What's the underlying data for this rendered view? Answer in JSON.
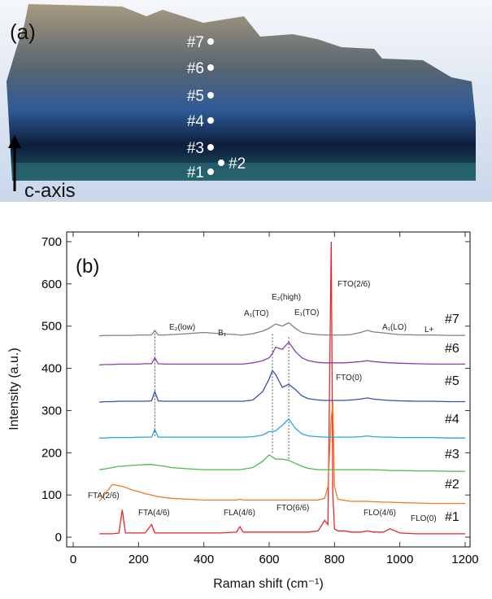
{
  "photo": {
    "panel_label": "(a)",
    "axis_label": "c-axis",
    "points": [
      "#7",
      "#6",
      "#5",
      "#4",
      "#3",
      "#1",
      "#2"
    ]
  },
  "chart_data": {
    "type": "line",
    "panel_label": "(b)",
    "xlabel": "Raman shift (cm⁻¹)",
    "ylabel": "Intensity (a.u.)",
    "x": [
      80,
      100,
      120,
      140,
      150,
      160,
      180,
      200,
      220,
      240,
      250,
      260,
      280,
      300,
      350,
      400,
      450,
      500,
      510,
      520,
      550,
      580,
      600,
      610,
      620,
      640,
      660,
      680,
      700,
      720,
      750,
      770,
      780,
      790,
      795,
      800,
      810,
      830,
      850,
      880,
      900,
      920,
      950,
      970,
      1000,
      1050,
      1100,
      1150,
      1200
    ],
    "series": [
      {
        "name": "#1",
        "color": "#e8262b",
        "values": [
          8,
          8,
          8,
          10,
          65,
          10,
          10,
          10,
          10,
          30,
          10,
          10,
          10,
          10,
          10,
          10,
          10,
          12,
          25,
          12,
          12,
          12,
          12,
          12,
          12,
          12,
          12,
          12,
          12,
          12,
          15,
          40,
          30,
          700,
          100,
          20,
          15,
          15,
          12,
          12,
          15,
          12,
          12,
          20,
          10,
          8,
          8,
          8,
          8
        ]
      },
      {
        "name": "#2",
        "color": "#f07a2a",
        "values": [
          85,
          105,
          125,
          122,
          120,
          118,
          112,
          108,
          103,
          100,
          98,
          96,
          94,
          92,
          90,
          88,
          88,
          88,
          90,
          88,
          88,
          88,
          88,
          88,
          88,
          88,
          88,
          88,
          88,
          88,
          88,
          92,
          120,
          280,
          320,
          120,
          90,
          87,
          85,
          85,
          85,
          84,
          83,
          83,
          82,
          81,
          80,
          80,
          80
        ]
      },
      {
        "name": "#3",
        "color": "#4db848",
        "values": [
          160,
          162,
          165,
          168,
          168,
          169,
          170,
          171,
          172,
          172,
          171,
          170,
          168,
          165,
          162,
          160,
          160,
          160,
          160,
          161,
          165,
          180,
          195,
          190,
          185,
          185,
          182,
          175,
          168,
          163,
          160,
          160,
          160,
          160,
          160,
          160,
          160,
          160,
          160,
          160,
          160,
          160,
          159,
          158,
          158,
          157,
          157,
          156,
          156
        ]
      },
      {
        "name": "#4",
        "color": "#29a3e0",
        "values": [
          235,
          235,
          236,
          236,
          236,
          236,
          236,
          237,
          237,
          237,
          255,
          237,
          237,
          237,
          237,
          237,
          237,
          237,
          237,
          237,
          238,
          242,
          250,
          250,
          252,
          265,
          280,
          258,
          245,
          240,
          238,
          237,
          237,
          237,
          237,
          237,
          237,
          237,
          237,
          238,
          240,
          238,
          237,
          237,
          236,
          236,
          236,
          235,
          235
        ]
      },
      {
        "name": "#5",
        "color": "#3452a8",
        "values": [
          320,
          321,
          321,
          322,
          322,
          322,
          322,
          322,
          322,
          323,
          345,
          323,
          322,
          322,
          322,
          322,
          322,
          322,
          322,
          322,
          325,
          345,
          375,
          395,
          385,
          355,
          362,
          350,
          335,
          328,
          325,
          324,
          324,
          324,
          324,
          324,
          324,
          324,
          325,
          327,
          330,
          327,
          325,
          324,
          323,
          322,
          322,
          321,
          321
        ]
      },
      {
        "name": "#6",
        "color": "#8c3fa5",
        "values": [
          408,
          409,
          409,
          410,
          410,
          410,
          410,
          410,
          411,
          411,
          425,
          411,
          410,
          410,
          410,
          410,
          410,
          410,
          410,
          410,
          413,
          418,
          425,
          435,
          450,
          445,
          462,
          440,
          425,
          418,
          414,
          413,
          413,
          413,
          413,
          413,
          413,
          413,
          414,
          416,
          418,
          416,
          414,
          413,
          412,
          411,
          410,
          410,
          410
        ]
      },
      {
        "name": "#7",
        "color": "#808080",
        "values": [
          477,
          478,
          478,
          478,
          478,
          478,
          478,
          479,
          479,
          479,
          490,
          479,
          479,
          480,
          482,
          485,
          482,
          480,
          479,
          479,
          482,
          488,
          495,
          500,
          505,
          500,
          508,
          495,
          485,
          482,
          480,
          479,
          479,
          479,
          479,
          479,
          479,
          479,
          480,
          485,
          490,
          486,
          484,
          482,
          480,
          479,
          479,
          478,
          478
        ]
      }
    ],
    "annotations": [
      "E₂(low)",
      "B₁",
      "A₁(TO)",
      "E₂(high)",
      "E₁(TO)",
      "FTO(2/6)",
      "A₁(LO)",
      "L+",
      "FTO(0)",
      "FTA(2/6)",
      "FTA(4/6)",
      "FLA(4/6)",
      "FTO(6/6)",
      "FLO(4/6)",
      "FLO(0)"
    ],
    "xlim": [
      -20,
      1215
    ],
    "ylim": [
      -23,
      723
    ],
    "xticks": [
      0,
      200,
      400,
      600,
      800,
      1000,
      1200
    ],
    "yticks": [
      0,
      100,
      200,
      300,
      400,
      500,
      600,
      700
    ]
  }
}
